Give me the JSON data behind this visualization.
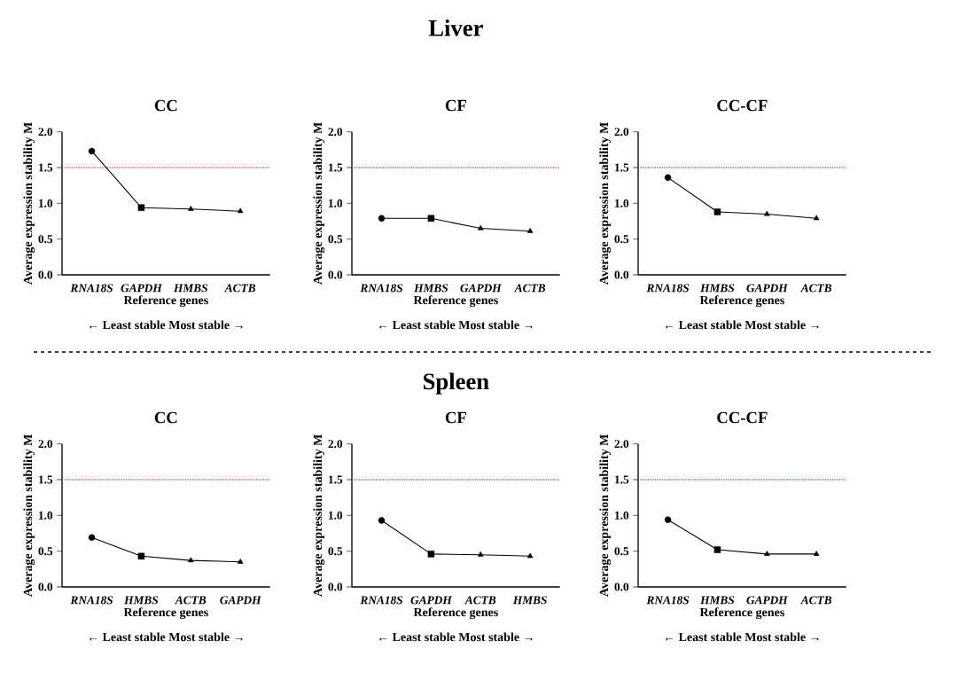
{
  "chart_data": [
    {
      "type": "line",
      "title": "CC",
      "xlabel": "Reference genes",
      "ylabel": "Average expression stability M",
      "annotations": [
        "← Least stable    Most stable →"
      ],
      "categories": [
        "RNA18S",
        "GAPDH",
        "HMBS",
        "ACTB"
      ],
      "series": [
        {
          "color": "#000000",
          "values": [
            1.73,
            0.94,
            0.92,
            0.89
          ],
          "marker": [
            "circle",
            "square",
            "triangle",
            "triangle"
          ]
        }
      ],
      "ylim": [
        0,
        2
      ],
      "yticks": [
        {
          "value": 0,
          "label": "0.0"
        },
        {
          "value": 0.5,
          "label": "0.5"
        },
        {
          "value": 1,
          "label": "1.0"
        },
        {
          "value": 1.5,
          "label": "1.5"
        },
        {
          "value": 2,
          "label": "2.0"
        }
      ],
      "ref_lines": [
        {
          "axis": "y",
          "value": 1.5,
          "color": "#e05a5a",
          "line_style": "dotted"
        }
      ]
    },
    {
      "type": "line",
      "title": "CF",
      "subtitle": "Liver",
      "xlabel": "Reference genes",
      "ylabel": "Average expression stability M",
      "annotations": [
        "← Least stable    Most stable →"
      ],
      "categories": [
        "RNA18S",
        "HMBS",
        "GAPDH",
        "ACTB"
      ],
      "series": [
        {
          "color": "#000000",
          "values": [
            0.79,
            0.79,
            0.65,
            0.61
          ],
          "marker": [
            "circle",
            "square",
            "triangle",
            "triangle"
          ]
        }
      ],
      "ylim": [
        0,
        2
      ],
      "yticks": [
        {
          "value": 0,
          "label": "0.0"
        },
        {
          "value": 0.5,
          "label": "0.5"
        },
        {
          "value": 1,
          "label": "1.0"
        },
        {
          "value": 1.5,
          "label": "1.5"
        },
        {
          "value": 2,
          "label": "2.0"
        }
      ],
      "ref_lines": [
        {
          "axis": "y",
          "value": 1.5,
          "color": "#e05a5a",
          "line_style": "dotted"
        }
      ]
    },
    {
      "type": "line",
      "title": "CC-CF",
      "xlabel": "Reference genes",
      "ylabel": "Average expression stability M",
      "annotations": [
        "← Least stable    Most stable →"
      ],
      "categories": [
        "RNA18S",
        "HMBS",
        "GAPDH",
        "ACTB"
      ],
      "series": [
        {
          "color": "#000000",
          "values": [
            1.36,
            0.88,
            0.85,
            0.79
          ],
          "marker": [
            "circle",
            "square",
            "triangle",
            "triangle"
          ]
        }
      ],
      "ylim": [
        0,
        2
      ],
      "yticks": [
        {
          "value": 0,
          "label": "0.0"
        },
        {
          "value": 0.5,
          "label": "0.5"
        },
        {
          "value": 1,
          "label": "1.0"
        },
        {
          "value": 1.5,
          "label": "1.5"
        },
        {
          "value": 2,
          "label": "2.0"
        }
      ],
      "ref_lines": [
        {
          "axis": "y",
          "value": 1.5,
          "color": "#e05a5a",
          "line_style": "dotted"
        }
      ]
    },
    {
      "type": "line",
      "title": "CC",
      "xlabel": "Reference genes",
      "ylabel": "Average expression stability M",
      "annotations": [
        "← Least stable    Most stable →"
      ],
      "categories": [
        "RNA18S",
        "HMBS",
        "ACTB",
        "GAPDH"
      ],
      "series": [
        {
          "color": "#000000",
          "values": [
            0.69,
            0.43,
            0.37,
            0.35
          ],
          "marker": [
            "circle",
            "square",
            "triangle",
            "triangle"
          ]
        }
      ],
      "ylim": [
        0,
        2
      ],
      "yticks": [
        {
          "value": 0,
          "label": "0.0"
        },
        {
          "value": 0.5,
          "label": "0.5"
        },
        {
          "value": 1,
          "label": "1.0"
        },
        {
          "value": 1.5,
          "label": "1.5"
        },
        {
          "value": 2,
          "label": "2.0"
        }
      ],
      "ref_lines": [
        {
          "axis": "y",
          "value": 1.5,
          "color": "#e05a5a",
          "line_style": "dotted"
        }
      ]
    },
    {
      "type": "line",
      "title": "CF",
      "subtitle": "Spleen",
      "xlabel": "Reference genes",
      "ylabel": "Average expression stability M",
      "annotations": [
        "← Least stable    Most stable →"
      ],
      "categories": [
        "RNA18S",
        "GAPDH",
        "ACTB",
        "HMBS"
      ],
      "series": [
        {
          "color": "#000000",
          "values": [
            0.93,
            0.46,
            0.45,
            0.43
          ],
          "marker": [
            "circle",
            "square",
            "triangle",
            "triangle"
          ]
        }
      ],
      "ylim": [
        0,
        2
      ],
      "yticks": [
        {
          "value": 0,
          "label": "0.0"
        },
        {
          "value": 0.5,
          "label": "0.5"
        },
        {
          "value": 1,
          "label": "1.0"
        },
        {
          "value": 1.5,
          "label": "1.5"
        },
        {
          "value": 2,
          "label": "2.0"
        }
      ],
      "ref_lines": [
        {
          "axis": "y",
          "value": 1.5,
          "color": "#e05a5a",
          "line_style": "dotted"
        }
      ]
    },
    {
      "type": "line",
      "title": "CC-CF",
      "xlabel": "Reference genes",
      "ylabel": "Average expression stability M",
      "annotations": [
        "← Least stable    Most stable →"
      ],
      "categories": [
        "RNA18S",
        "HMBS",
        "GAPDH",
        "ACTB"
      ],
      "series": [
        {
          "color": "#000000",
          "values": [
            0.94,
            0.52,
            0.46,
            0.46
          ],
          "marker": [
            "circle",
            "square",
            "triangle",
            "triangle"
          ]
        }
      ],
      "ylim": [
        0,
        2
      ],
      "yticks": [
        {
          "value": 0,
          "label": "0.0"
        },
        {
          "value": 0.5,
          "label": "0.5"
        },
        {
          "value": 1,
          "label": "1.0"
        },
        {
          "value": 1.5,
          "label": "1.5"
        },
        {
          "value": 2,
          "label": "2.0"
        }
      ],
      "ref_lines": [
        {
          "axis": "y",
          "value": 1.5,
          "color": "#e05a5a",
          "line_style": "dotted"
        }
      ]
    }
  ]
}
